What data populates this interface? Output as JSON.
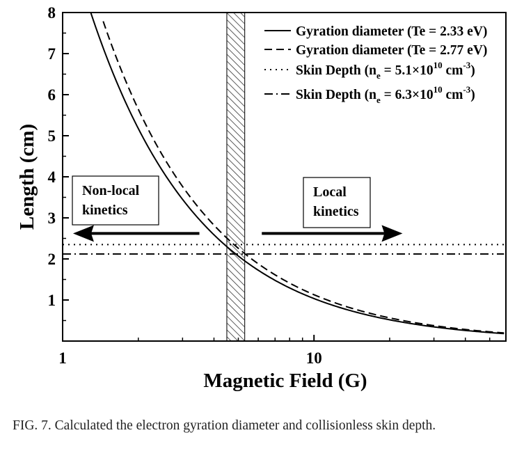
{
  "chart_data": {
    "type": "line",
    "xscale": "log",
    "xlim": [
      1,
      58
    ],
    "ylim": [
      0,
      8
    ],
    "xlabel": "Magnetic Field (G)",
    "ylabel": "Length (cm)",
    "xticks": [
      {
        "value": 1,
        "label": "1"
      },
      {
        "value": 10,
        "label": "10"
      }
    ],
    "yticks": [
      {
        "value": 1,
        "label": "1"
      },
      {
        "value": 2,
        "label": "2"
      },
      {
        "value": 3,
        "label": "3"
      },
      {
        "value": 4,
        "label": "4"
      },
      {
        "value": 5,
        "label": "5"
      },
      {
        "value": 6,
        "label": "6"
      },
      {
        "value": 7,
        "label": "7"
      },
      {
        "value": 8,
        "label": "8"
      }
    ],
    "grid": false,
    "legend_position": "top-right",
    "series": [
      {
        "name": "Gyration diameter (Te = 2.33 eV)",
        "style": "solid",
        "coef": 10.35,
        "kind": "inverse",
        "xrange": [
          1.29,
          57
        ]
      },
      {
        "name": "Gyration diameter (Te = 2.77 eV)",
        "style": "dashed",
        "coef": 11.29,
        "kind": "inverse",
        "xrange": [
          1.45,
          57
        ]
      },
      {
        "name_parts": [
          "Skin Depth (n",
          "e",
          " = 5.1×10",
          "10",
          " cm",
          "-3",
          ")"
        ],
        "style": "dotted",
        "kind": "constant",
        "y": 2.35,
        "xrange": [
          1,
          57
        ]
      },
      {
        "name_parts": [
          "Skin Depth (n",
          "e",
          " = 6.3×10",
          "10",
          " cm",
          "-3",
          ")"
        ],
        "style": "dashdot",
        "kind": "constant",
        "y": 2.12,
        "xrange": [
          1,
          57
        ]
      }
    ],
    "shaded_band": {
      "x": [
        4.5,
        5.3
      ],
      "pattern": "hatch"
    },
    "annotations": [
      {
        "lines": [
          "Non-local",
          "kinetics"
        ],
        "arrow": "left",
        "arrow_x": [
          1.1,
          3.5
        ],
        "arrow_y": 2.62
      },
      {
        "lines": [
          "Local",
          "kinetics"
        ],
        "arrow": "right",
        "arrow_x": [
          6.2,
          22.5
        ],
        "arrow_y": 2.62
      }
    ]
  },
  "caption": "FIG. 7. Calculated the electron gyration diameter and collisionless skin depth."
}
